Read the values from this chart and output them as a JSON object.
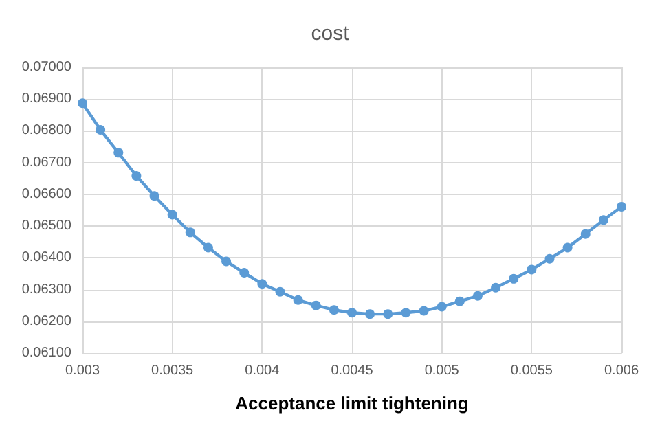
{
  "chart_data": {
    "type": "line",
    "title": "cost",
    "xlabel": "Acceptance limit tightening",
    "x": [
      0.003,
      0.0031,
      0.0032,
      0.0033,
      0.0034,
      0.0035,
      0.0036,
      0.0037,
      0.0038,
      0.0039,
      0.004,
      0.0041,
      0.0042,
      0.0043,
      0.0044,
      0.0045,
      0.0046,
      0.0047,
      0.0048,
      0.0049,
      0.005,
      0.0051,
      0.0052,
      0.0053,
      0.0054,
      0.0055,
      0.0056,
      0.0057,
      0.0058,
      0.0059,
      0.006
    ],
    "series": [
      {
        "color": "#5b9bd5",
        "values": [
          0.06887,
          0.06803,
          0.06731,
          0.06658,
          0.06595,
          0.06536,
          0.0648,
          0.06432,
          0.06389,
          0.06353,
          0.06318,
          0.06293,
          0.06267,
          0.0625,
          0.06236,
          0.06227,
          0.06223,
          0.06223,
          0.06227,
          0.06233,
          0.06246,
          0.06263,
          0.0628,
          0.06306,
          0.06334,
          0.06363,
          0.06397,
          0.06432,
          0.06475,
          0.06519,
          0.06561
        ]
      }
    ],
    "xlim": [
      0.003,
      0.006
    ],
    "xticks": [
      0.003,
      0.0035,
      0.004,
      0.0045,
      0.005,
      0.0055,
      0.006
    ],
    "ylim": [
      0.061,
      0.07
    ],
    "yticks": [
      {
        "value": 0.061,
        "label": "0.06100"
      },
      {
        "value": 0.062,
        "label": "0.06200"
      },
      {
        "value": 0.063,
        "label": "0.06300"
      },
      {
        "value": 0.064,
        "label": "0.06400"
      },
      {
        "value": 0.065,
        "label": "0.06500"
      },
      {
        "value": 0.066,
        "label": "0.06600"
      },
      {
        "value": 0.067,
        "label": "0.06700"
      },
      {
        "value": 0.068,
        "label": "0.06800"
      },
      {
        "value": 0.069,
        "label": "0.06900"
      },
      {
        "value": 0.07,
        "label": "0.07000"
      }
    ],
    "grid": true,
    "marker": "circle",
    "line_style": "solid"
  }
}
